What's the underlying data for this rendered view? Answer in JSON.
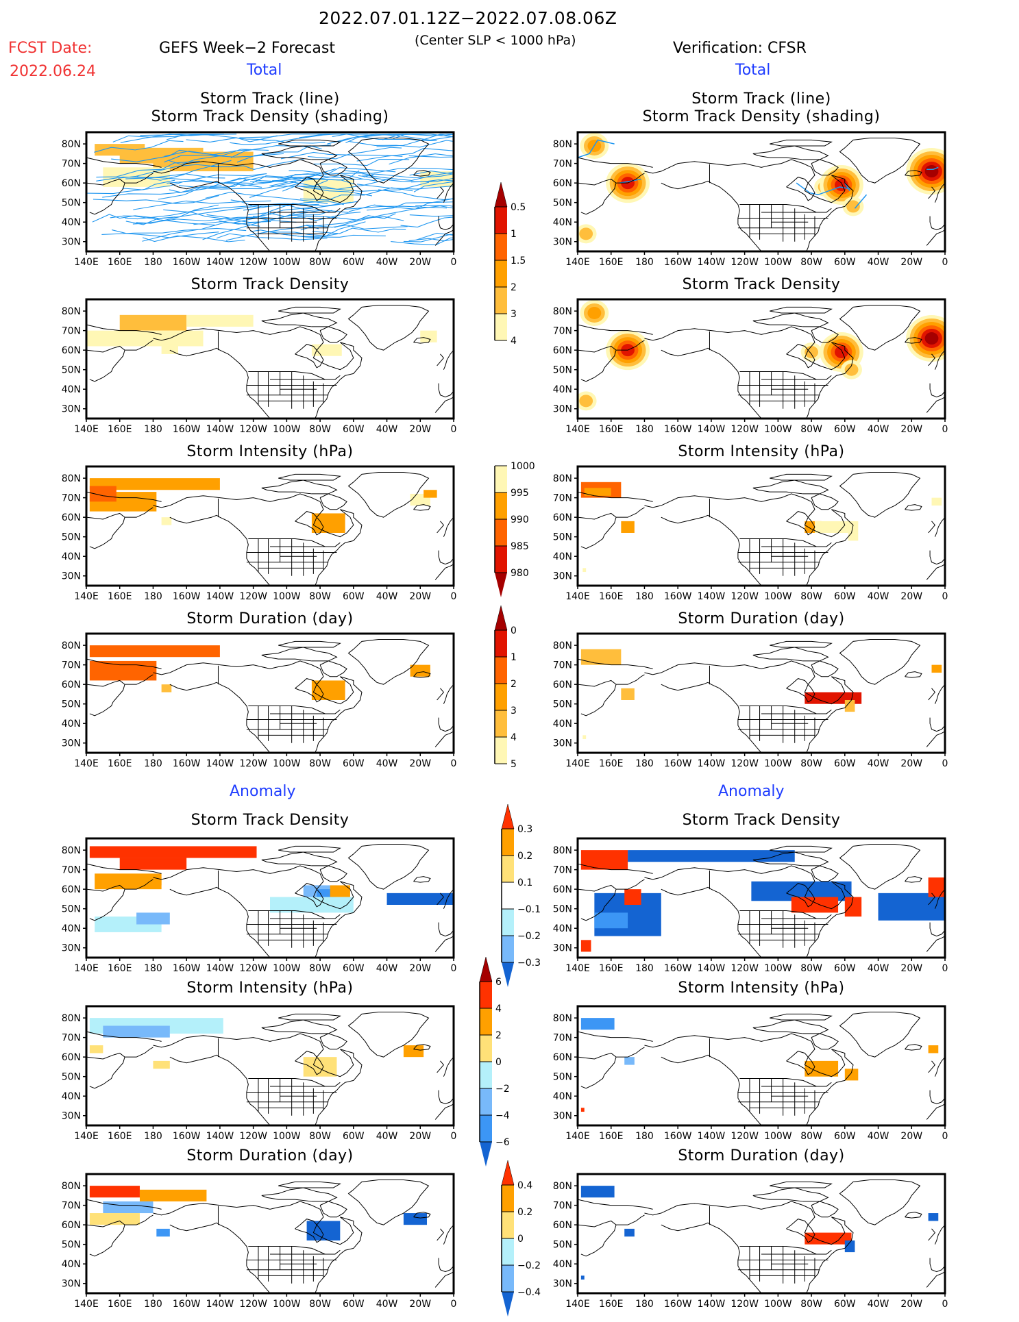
{
  "header": {
    "period": "2022.07.01.12Z−2022.07.08.06Z",
    "criterion": "(Center SLP < 1000 hPa)",
    "fcst_label": "FCST Date:",
    "fcst_date": "2022.06.24",
    "left_source": "GEFS Week−2 Forecast",
    "right_source": "Verification: CFSR",
    "total_label": "Total",
    "anomaly_label": "Anomaly"
  },
  "axes": {
    "x_ticks": [
      "140E",
      "160E",
      "180",
      "160W",
      "140W",
      "120W",
      "100W",
      "80W",
      "60W",
      "40W",
      "20W",
      "0"
    ],
    "y_ticks": [
      "80N",
      "70N",
      "60N",
      "50N",
      "40N",
      "30N"
    ]
  },
  "colors": {
    "seq": [
      "#fff7b5",
      "#ffbe3c",
      "#ffa000",
      "#ff6400",
      "#e11400",
      "#a50000"
    ],
    "div": [
      "#1464d2",
      "#3c96f5",
      "#78b9fa",
      "#b4f0fa",
      "#ffffff",
      "#ffe178",
      "#ffa000",
      "#ff3200"
    ],
    "track_line": "#1e96f0",
    "frame": "#000000"
  },
  "colorbars": [
    {
      "id": "density",
      "labels": [
        "0.5",
        "1",
        "1.5",
        "2",
        "3",
        "4"
      ]
    },
    {
      "id": "intensity",
      "labels": [
        "1000",
        "995",
        "990",
        "985",
        "980"
      ]
    },
    {
      "id": "duration",
      "labels": [
        "0",
        "1",
        "2",
        "3",
        "4",
        "5"
      ]
    },
    {
      "id": "density_anom",
      "labels": [
        "0.3",
        "0.2",
        "0.1",
        "−0.1",
        "−0.2",
        "−0.3"
      ]
    },
    {
      "id": "intensity_anom",
      "labels": [
        "6",
        "4",
        "2",
        "0",
        "−2",
        "−4",
        "−6"
      ]
    },
    {
      "id": "duration_anom",
      "labels": [
        "0.4",
        "0.2",
        "0",
        "−0.2",
        "−0.4"
      ]
    }
  ],
  "chart_data": [
    {
      "type": "heatmap",
      "panel": "fcst-total-track",
      "title": [
        "Storm Track (line)",
        "Storm Track Density (shading)"
      ],
      "cmap": "seq",
      "tracks": "many",
      "cells": [
        [
          145,
          80,
          30,
          6,
          1
        ],
        [
          160,
          78,
          50,
          8,
          1
        ],
        [
          180,
          76,
          60,
          10,
          1
        ],
        [
          200,
          80,
          0,
          0,
          0
        ],
        [
          150,
          68,
          40,
          10,
          0
        ],
        [
          270,
          62,
          30,
          12,
          0
        ],
        [
          340,
          66,
          20,
          8,
          0
        ]
      ]
    },
    {
      "type": "heatmap",
      "panel": "verif-total-track",
      "title": [
        "Storm Track (line)",
        "Storm Track Density (shading)"
      ],
      "cmap": "seq",
      "blobs": [
        [
          150,
          79,
          2
        ],
        [
          170,
          60,
          4
        ],
        [
          145,
          34,
          1
        ],
        [
          288,
          58,
          1
        ],
        [
          298,
          59,
          4
        ],
        [
          305,
          48,
          1
        ],
        [
          352,
          66,
          5
        ]
      ],
      "tracks": [
        [
          [
            140,
            73
          ],
          [
            147,
            75
          ],
          [
            152,
            82
          ],
          [
            162,
            80
          ]
        ],
        [
          [
            165,
            60
          ],
          [
            172,
            61
          ],
          [
            178,
            62
          ]
        ],
        [
          [
            271,
            60
          ],
          [
            279,
            55
          ],
          [
            284,
            54
          ],
          [
            297,
            58
          ],
          [
            303,
            57
          ]
        ],
        [
          [
            300,
            60
          ],
          [
            303,
            56
          ]
        ],
        [
          [
            306,
            47
          ],
          [
            313,
            54
          ]
        ],
        [
          [
            349,
            67
          ],
          [
            353,
            67
          ],
          [
            356,
            68
          ]
        ]
      ]
    },
    {
      "type": "heatmap",
      "panel": "fcst-total-density",
      "title": "Storm Track Density",
      "cmap": "seq",
      "cells": [
        [
          160,
          78,
          40,
          8,
          1
        ],
        [
          140,
          70,
          70,
          8,
          0
        ],
        [
          185,
          63,
          10,
          5,
          0
        ],
        [
          275,
          63,
          18,
          6,
          0
        ],
        [
          340,
          70,
          10,
          6,
          0
        ],
        [
          200,
          78,
          40,
          6,
          0
        ]
      ]
    },
    {
      "type": "heatmap",
      "panel": "verif-total-density",
      "title": "Storm Track Density",
      "cmap": "seq",
      "blobs": [
        [
          150,
          79,
          2
        ],
        [
          170,
          60,
          4
        ],
        [
          145,
          34,
          1
        ],
        [
          280,
          59,
          1
        ],
        [
          298,
          59,
          4
        ],
        [
          304,
          50,
          1
        ],
        [
          352,
          66,
          5
        ]
      ]
    },
    {
      "type": "heatmap",
      "panel": "fcst-total-intensity",
      "title": "Storm Intensity (hPa)",
      "cmap": "seq",
      "cells": [
        [
          142,
          80,
          78,
          6,
          2
        ],
        [
          142,
          73,
          40,
          10,
          2
        ],
        [
          142,
          76,
          16,
          8,
          3
        ],
        [
          275,
          62,
          20,
          10,
          2
        ],
        [
          185,
          60,
          6,
          4,
          0
        ],
        [
          334,
          72,
          12,
          6,
          0
        ],
        [
          342,
          74,
          8,
          4,
          2
        ]
      ]
    },
    {
      "type": "heatmap",
      "panel": "verif-total-intensity",
      "title": "Storm Intensity (hPa)",
      "cmap": "seq",
      "cells": [
        [
          142,
          78,
          24,
          8,
          3
        ],
        [
          144,
          75,
          16,
          4,
          2
        ],
        [
          166,
          58,
          8,
          6,
          2
        ],
        [
          276,
          58,
          10,
          6,
          2
        ],
        [
          282,
          58,
          26,
          6,
          0
        ],
        [
          302,
          52,
          6,
          4,
          0
        ],
        [
          352,
          70,
          6,
          4,
          0
        ],
        [
          143,
          34,
          2,
          2,
          0
        ]
      ]
    },
    {
      "type": "heatmap",
      "panel": "fcst-total-duration",
      "title": "Storm Duration (day)",
      "cmap": "seq",
      "cells": [
        [
          142,
          80,
          78,
          6,
          3
        ],
        [
          142,
          72,
          40,
          10,
          3
        ],
        [
          275,
          62,
          20,
          10,
          2
        ],
        [
          185,
          60,
          6,
          4,
          1
        ],
        [
          334,
          70,
          12,
          6,
          2
        ]
      ]
    },
    {
      "type": "heatmap",
      "panel": "verif-total-duration",
      "title": "Storm Duration (day)",
      "cmap": "seq",
      "cells": [
        [
          142,
          78,
          24,
          8,
          1
        ],
        [
          166,
          58,
          8,
          6,
          1
        ],
        [
          276,
          56,
          34,
          6,
          4
        ],
        [
          300,
          52,
          6,
          6,
          1
        ],
        [
          352,
          70,
          6,
          4,
          2
        ],
        [
          143,
          34,
          2,
          2,
          0
        ]
      ]
    },
    {
      "type": "heatmap",
      "panel": "fcst-anom-density",
      "title": "Storm Track Density",
      "cmap": "div",
      "cells": [
        [
          142,
          82,
          100,
          6,
          7
        ],
        [
          160,
          76,
          40,
          6,
          7
        ],
        [
          145,
          68,
          40,
          8,
          6
        ],
        [
          175,
          66,
          10,
          4,
          6
        ],
        [
          270,
          62,
          20,
          12,
          2
        ],
        [
          278,
          60,
          10,
          6,
          1
        ],
        [
          286,
          62,
          12,
          6,
          6
        ],
        [
          320,
          58,
          40,
          6,
          0
        ],
        [
          145,
          46,
          40,
          8,
          3
        ],
        [
          170,
          48,
          20,
          6,
          2
        ],
        [
          250,
          56,
          50,
          8,
          3
        ]
      ]
    },
    {
      "type": "heatmap",
      "panel": "verif-anom-density",
      "title": "Storm Track Density",
      "cmap": "div",
      "cells": [
        [
          142,
          80,
          28,
          10,
          7
        ],
        [
          170,
          80,
          100,
          6,
          0
        ],
        [
          150,
          58,
          40,
          22,
          0
        ],
        [
          150,
          48,
          20,
          8,
          1
        ],
        [
          244,
          64,
          60,
          10,
          0
        ],
        [
          320,
          58,
          50,
          14,
          0
        ],
        [
          268,
          56,
          28,
          8,
          7
        ],
        [
          300,
          56,
          10,
          10,
          7
        ],
        [
          168,
          60,
          10,
          8,
          7
        ],
        [
          350,
          66,
          10,
          10,
          7
        ],
        [
          142,
          34,
          6,
          6,
          7
        ]
      ]
    },
    {
      "type": "heatmap",
      "panel": "fcst-anom-intensity",
      "title": "Storm Intensity (hPa)",
      "cmap": "div",
      "cells": [
        [
          142,
          80,
          80,
          8,
          3
        ],
        [
          150,
          76,
          40,
          6,
          2
        ],
        [
          142,
          66,
          8,
          4,
          5
        ],
        [
          180,
          58,
          10,
          4,
          5
        ],
        [
          270,
          60,
          20,
          10,
          5
        ],
        [
          330,
          66,
          12,
          6,
          6
        ]
      ]
    },
    {
      "type": "heatmap",
      "panel": "verif-anom-intensity",
      "title": "Storm Intensity (hPa)",
      "cmap": "div",
      "cells": [
        [
          142,
          80,
          20,
          6,
          1
        ],
        [
          168,
          60,
          6,
          4,
          2
        ],
        [
          276,
          58,
          20,
          8,
          6
        ],
        [
          300,
          54,
          8,
          6,
          6
        ],
        [
          350,
          66,
          6,
          4,
          6
        ],
        [
          142,
          34,
          2,
          2,
          7
        ]
      ]
    },
    {
      "type": "heatmap",
      "panel": "fcst-anom-duration",
      "title": "Storm Duration (day)",
      "cmap": "div",
      "cells": [
        [
          142,
          80,
          30,
          6,
          7
        ],
        [
          172,
          78,
          40,
          6,
          6
        ],
        [
          150,
          72,
          30,
          6,
          2
        ],
        [
          142,
          66,
          30,
          6,
          5
        ],
        [
          182,
          58,
          8,
          4,
          1
        ],
        [
          272,
          62,
          20,
          10,
          0
        ],
        [
          330,
          66,
          14,
          6,
          0
        ]
      ]
    },
    {
      "type": "heatmap",
      "panel": "verif-anom-duration",
      "title": "Storm Duration (day)",
      "cmap": "div",
      "cells": [
        [
          142,
          80,
          20,
          6,
          0
        ],
        [
          168,
          58,
          6,
          4,
          0
        ],
        [
          276,
          56,
          28,
          6,
          7
        ],
        [
          300,
          52,
          6,
          6,
          0
        ],
        [
          350,
          66,
          6,
          4,
          0
        ],
        [
          142,
          34,
          2,
          2,
          0
        ]
      ]
    }
  ]
}
